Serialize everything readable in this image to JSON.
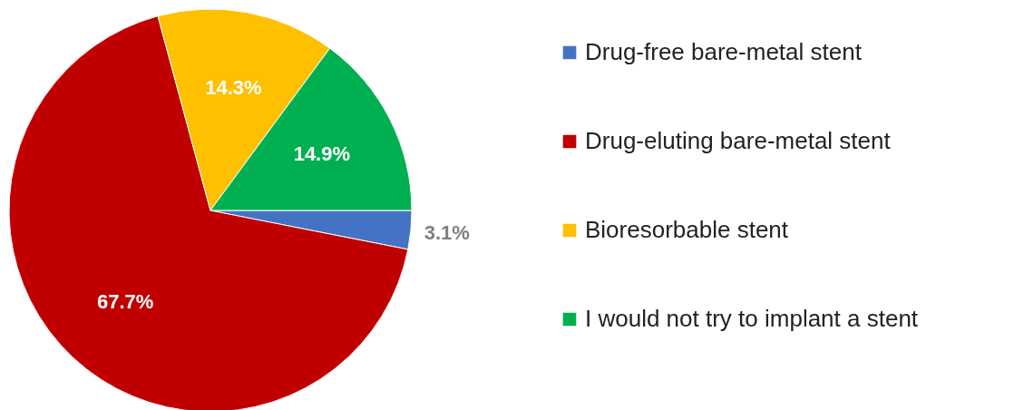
{
  "chart_data": {
    "type": "pie",
    "categories": [
      "Drug-free bare-metal stent",
      "Drug-eluting bare-metal stent",
      "Bioresorbable stent",
      "I would not try to implant a stent"
    ],
    "values": [
      3.1,
      67.7,
      14.3,
      14.9
    ],
    "colors": [
      "#4472c4",
      "#c00000",
      "#ffc000",
      "#00b050"
    ],
    "value_labels": [
      "3.1%",
      "67.7%",
      "14.3%",
      "14.9%"
    ],
    "legend": "right"
  }
}
